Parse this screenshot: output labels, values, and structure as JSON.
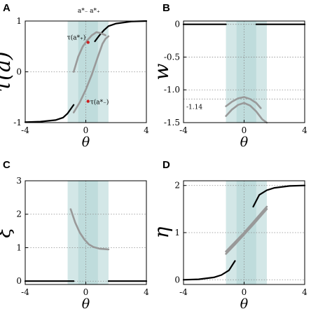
{
  "chart_data": [
    {
      "id": "A",
      "type": "line",
      "panel_label": "A",
      "xlabel": "θ",
      "ylabel": "τ(a)",
      "xlim": [
        -4,
        4
      ],
      "ylim": [
        -1,
        1
      ],
      "xticks": [
        "-4",
        "0",
        "4"
      ],
      "yticks": [
        "-1",
        "0",
        "1"
      ],
      "grid": true,
      "bands": [
        {
          "x0": -1.2,
          "x1": 1.5,
          "color": "#d3e7e7"
        },
        {
          "x0": -0.5,
          "x1": 0.8,
          "color": "#bfdcdc"
        }
      ],
      "top_labels": [
        {
          "text": "a*₋",
          "x": -0.2
        },
        {
          "text": "a*₊",
          "x": 0.6
        }
      ],
      "annotations": [
        {
          "text": "τ(a*₊)",
          "x": 0.15,
          "y": 0.58,
          "color": "#cc2020"
        },
        {
          "text": "τ(a*₋)",
          "x": 0.15,
          "y": -0.58,
          "color": "#cc2020"
        }
      ],
      "series": [
        {
          "color": "#000000",
          "points": [
            [
              -4,
              -0.99
            ],
            [
              -3,
              -0.98
            ],
            [
              -2,
              -0.95
            ],
            [
              -1.5,
              -0.9
            ],
            [
              -1.2,
              -0.82
            ],
            [
              -0.8,
              -0.65
            ]
          ]
        },
        {
          "color": "#000000",
          "points": [
            [
              0.6,
              0.6
            ],
            [
              0.9,
              0.72
            ],
            [
              1.2,
              0.82
            ],
            [
              1.5,
              0.9
            ],
            [
              2,
              0.95
            ],
            [
              3,
              0.99
            ],
            [
              4,
              1.0
            ]
          ]
        },
        {
          "color": "#999999",
          "points": [
            [
              -0.8,
              -0.8
            ],
            [
              -0.4,
              -0.6
            ],
            [
              0,
              -0.35
            ],
            [
              0.4,
              -0.05
            ],
            [
              0.8,
              0.3
            ],
            [
              1.1,
              0.55
            ],
            [
              1.3,
              0.65
            ],
            [
              1.5,
              0.7
            ]
          ]
        },
        {
          "color": "#999999",
          "points": [
            [
              -0.8,
              0.0
            ],
            [
              -0.5,
              0.3
            ],
            [
              -0.2,
              0.5
            ],
            [
              0.1,
              0.62
            ],
            [
              0.4,
              0.72
            ],
            [
              0.7,
              0.78
            ],
            [
              1.0,
              0.76
            ],
            [
              1.3,
              0.72
            ]
          ]
        }
      ]
    },
    {
      "id": "B",
      "type": "line",
      "panel_label": "B",
      "xlabel": "θ",
      "ylabel": "w",
      "xlim": [
        -4,
        4
      ],
      "ylim": [
        -1.5,
        0.05
      ],
      "xticks": [
        "-4",
        "0",
        "4"
      ],
      "yticks": [
        "0",
        "-0.5",
        "-1.0",
        "-1.5"
      ],
      "ytick_values": [
        0,
        -0.5,
        -1.0,
        -1.5
      ],
      "grid": true,
      "bands": [
        {
          "x0": -1.2,
          "x1": 1.5,
          "color": "#d3e7e7"
        },
        {
          "x0": -0.5,
          "x1": 0.8,
          "color": "#bfdcdc"
        }
      ],
      "ref_line": {
        "y": -1.14,
        "label": "-1.14"
      },
      "series": [
        {
          "color": "#000000",
          "points": [
            [
              -4,
              0
            ],
            [
              -1.2,
              0
            ]
          ]
        },
        {
          "color": "#000000",
          "points": [
            [
              0.8,
              0
            ],
            [
              4,
              0
            ]
          ]
        },
        {
          "color": "#999999",
          "points": [
            [
              -1.2,
              -1.4
            ],
            [
              -0.8,
              -1.3
            ],
            [
              -0.4,
              -1.23
            ],
            [
              0,
              -1.2
            ],
            [
              0.4,
              -1.24
            ],
            [
              0.8,
              -1.33
            ],
            [
              1.2,
              -1.45
            ],
            [
              1.5,
              -1.5
            ]
          ]
        },
        {
          "color": "#999999",
          "points": [
            [
              -1.2,
              -1.25
            ],
            [
              -0.8,
              -1.18
            ],
            [
              -0.4,
              -1.13
            ],
            [
              0,
              -1.11
            ],
            [
              0.4,
              -1.14
            ],
            [
              0.8,
              -1.2
            ],
            [
              1.1,
              -1.28
            ]
          ]
        }
      ]
    },
    {
      "id": "C",
      "type": "line",
      "panel_label": "C",
      "xlabel": "θ",
      "ylabel": "ξ",
      "xlim": [
        -4,
        4
      ],
      "ylim": [
        -0.1,
        3
      ],
      "xticks": [
        "-4",
        "0",
        "4"
      ],
      "yticks": [
        "0",
        "1",
        "2",
        "3"
      ],
      "ytick_values": [
        0,
        1,
        2,
        3
      ],
      "grid": true,
      "bands": [
        {
          "x0": -1.2,
          "x1": 1.5,
          "color": "#d3e7e7"
        },
        {
          "x0": -0.5,
          "x1": 0.8,
          "color": "#bfdcdc"
        }
      ],
      "series": [
        {
          "color": "#000000",
          "points": [
            [
              -4,
              0
            ],
            [
              -0.8,
              0
            ]
          ]
        },
        {
          "color": "#000000",
          "points": [
            [
              1.5,
              0
            ],
            [
              4,
              0
            ]
          ]
        },
        {
          "color": "#999999",
          "points": [
            [
              -1.0,
              2.15
            ],
            [
              -0.7,
              1.75
            ],
            [
              -0.4,
              1.45
            ],
            [
              -0.1,
              1.25
            ],
            [
              0.2,
              1.1
            ],
            [
              0.5,
              1.02
            ],
            [
              0.9,
              0.97
            ],
            [
              1.5,
              0.95
            ]
          ]
        }
      ]
    },
    {
      "id": "D",
      "type": "line",
      "panel_label": "D",
      "xlabel": "θ",
      "ylabel": "η",
      "xlim": [
        -4,
        4
      ],
      "ylim": [
        -0.1,
        2.1
      ],
      "xticks": [
        "-4",
        "0",
        "4"
      ],
      "yticks": [
        "0",
        "1",
        "2"
      ],
      "ytick_values": [
        0,
        1,
        2
      ],
      "grid": true,
      "bands": [
        {
          "x0": -1.2,
          "x1": 1.5,
          "color": "#d3e7e7"
        },
        {
          "x0": -0.5,
          "x1": 0.8,
          "color": "#bfdcdc"
        }
      ],
      "series": [
        {
          "color": "#000000",
          "points": [
            [
              -4,
              0.0
            ],
            [
              -3,
              0.01
            ],
            [
              -2,
              0.05
            ],
            [
              -1.5,
              0.1
            ],
            [
              -1.0,
              0.2
            ],
            [
              -0.6,
              0.4
            ]
          ]
        },
        {
          "color": "#000000",
          "points": [
            [
              0.6,
              1.55
            ],
            [
              1.0,
              1.8
            ],
            [
              1.5,
              1.9
            ],
            [
              2,
              1.95
            ],
            [
              3,
              1.99
            ],
            [
              4,
              2.0
            ]
          ]
        },
        {
          "color": "#999999",
          "points": [
            [
              -1.2,
              0.6
            ],
            [
              -0.6,
              0.8
            ],
            [
              0,
              1.0
            ],
            [
              0.6,
              1.22
            ],
            [
              1.2,
              1.44
            ],
            [
              1.5,
              1.55
            ]
          ]
        },
        {
          "color": "#999999",
          "points": [
            [
              -1.2,
              0.55
            ],
            [
              -0.6,
              0.75
            ],
            [
              0,
              0.96
            ],
            [
              0.6,
              1.17
            ],
            [
              1.2,
              1.39
            ],
            [
              1.5,
              1.5
            ]
          ]
        }
      ]
    }
  ]
}
